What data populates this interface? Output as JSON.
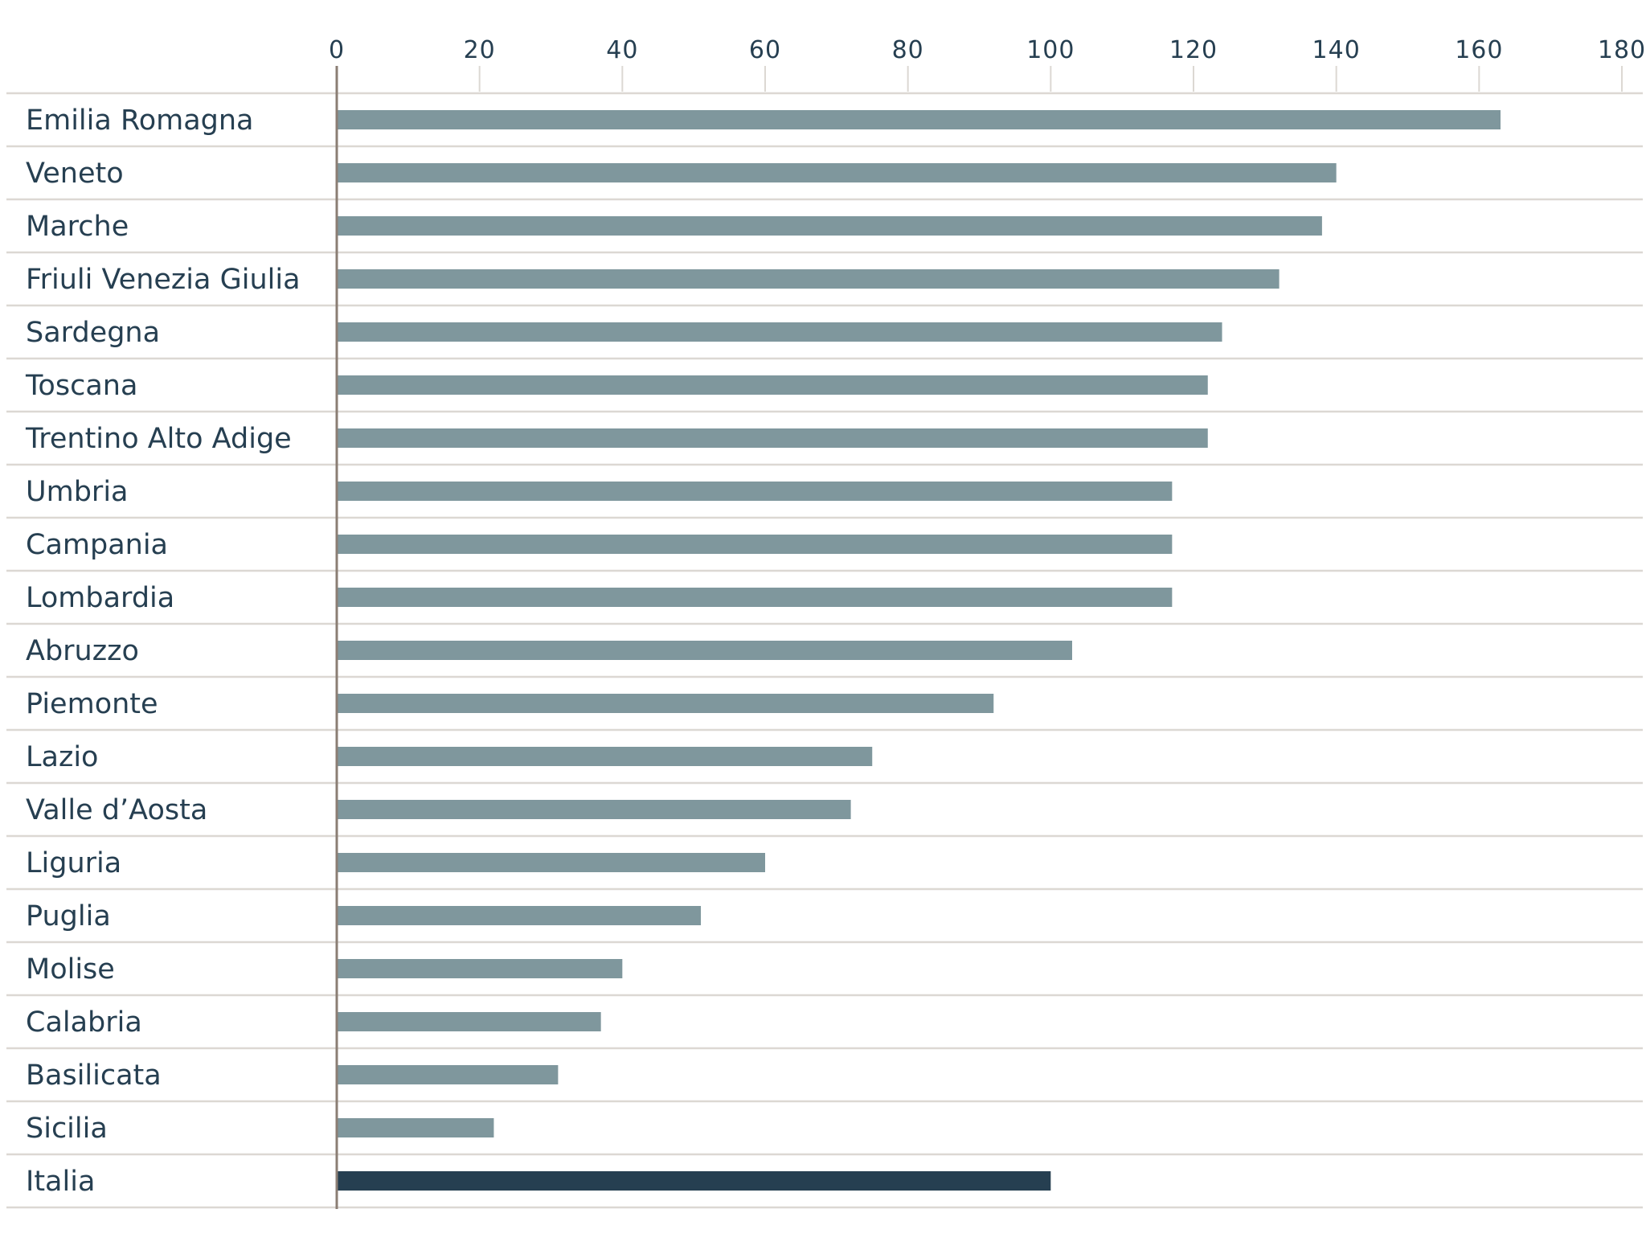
{
  "chart_data": {
    "type": "bar",
    "orientation": "horizontal",
    "title": "",
    "xlabel": "",
    "ylabel": "",
    "xlim": [
      0,
      180
    ],
    "x_ticks": [
      "0",
      "20",
      "40",
      "60",
      "80",
      "100",
      "120",
      "140",
      "160",
      "180"
    ],
    "grid": true,
    "legend": "none",
    "categories": [
      "Emilia Romagna",
      "Veneto",
      "Marche",
      "Friuli Venezia Giulia",
      "Sardegna",
      "Toscana",
      "Trentino Alto Adige",
      "Umbria",
      "Campania",
      "Lombardia",
      "Abruzzo",
      "Piemonte",
      "Lazio",
      "Valle d’Aosta",
      "Liguria",
      "Puglia",
      "Molise",
      "Calabria",
      "Basilicata",
      "Sicilia",
      "Italia"
    ],
    "values": [
      163,
      140,
      138,
      132,
      124,
      122,
      122,
      117,
      117,
      117,
      103,
      92,
      75,
      72,
      60,
      51,
      40,
      37,
      31,
      22,
      100
    ],
    "highlight_category": "Italia",
    "colors": {
      "bar": "#7f979d",
      "highlight": "#263f51",
      "text": "#263f51",
      "grid": "#dcd8d3",
      "axis": "#8b7e74"
    }
  }
}
